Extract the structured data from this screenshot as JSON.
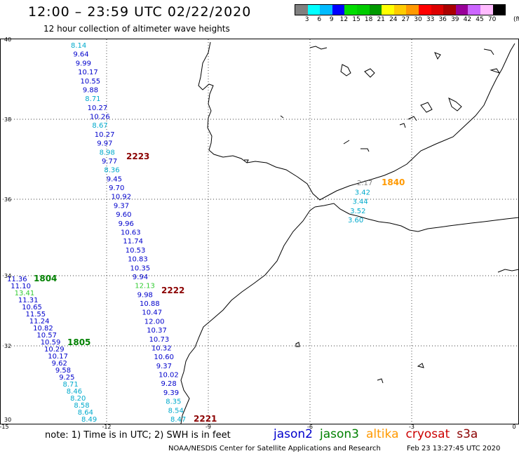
{
  "header": {
    "title": "12:00 – 23:59 UTC 02/22/2020",
    "subtitle": "12 hour collection of altimeter wave heights"
  },
  "legend": {
    "colors": [
      "#808080",
      "#00ffff",
      "#00bbff",
      "#0000ff",
      "#00dd00",
      "#00cc00",
      "#009900",
      "#ffff00",
      "#ffcc00",
      "#ff9900",
      "#ff0000",
      "#dd0000",
      "#aa0000",
      "#990099",
      "#cc66ff",
      "#ffbbff",
      "#000000"
    ],
    "labels": [
      "3",
      "6",
      "9",
      "12",
      "15",
      "18",
      "21",
      "24",
      "27",
      "30",
      "33",
      "36",
      "39",
      "42",
      "45",
      "70"
    ],
    "unit": "(ft)"
  },
  "axes": {
    "lon_ticks": [
      "-15",
      "-12",
      "-9",
      "-6",
      "-3",
      "0"
    ],
    "lat_ticks": [
      "40",
      "38",
      "36",
      "34",
      "32",
      "30"
    ]
  },
  "passes": [
    {
      "label": "2223",
      "color": "#8b0000"
    },
    {
      "label": "2222",
      "color": "#8b0000"
    },
    {
      "label": "2221",
      "color": "#8b0000"
    },
    {
      "label": "1804",
      "color": "#008000"
    },
    {
      "label": "1805",
      "color": "#008000"
    },
    {
      "label": "1840",
      "color": "#ff9900"
    }
  ],
  "track_a": [
    {
      "v": "8.14",
      "c": "#00aacc"
    },
    {
      "v": "9.64",
      "c": "#0000cc"
    },
    {
      "v": "9.99",
      "c": "#0000cc"
    },
    {
      "v": "10.17",
      "c": "#0000cc"
    },
    {
      "v": "10.55",
      "c": "#0000cc"
    },
    {
      "v": "9.88",
      "c": "#0000cc"
    },
    {
      "v": "8.71",
      "c": "#00aacc"
    },
    {
      "v": "10.27",
      "c": "#0000cc"
    },
    {
      "v": "10.26",
      "c": "#0000cc"
    },
    {
      "v": "8.67",
      "c": "#00aacc"
    },
    {
      "v": "10.27",
      "c": "#0000cc"
    },
    {
      "v": "9.97",
      "c": "#0000cc"
    },
    {
      "v": "8.98",
      "c": "#00aacc"
    },
    {
      "v": "9.77",
      "c": "#0000cc"
    },
    {
      "v": "8.36",
      "c": "#00aacc"
    },
    {
      "v": "9.45",
      "c": "#0000cc"
    },
    {
      "v": "9.70",
      "c": "#0000cc"
    },
    {
      "v": "10.92",
      "c": "#0000cc"
    },
    {
      "v": "9.37",
      "c": "#0000cc"
    },
    {
      "v": "9.60",
      "c": "#0000cc"
    },
    {
      "v": "9.96",
      "c": "#0000cc"
    },
    {
      "v": "10.63",
      "c": "#0000cc"
    },
    {
      "v": "11.74",
      "c": "#0000cc"
    },
    {
      "v": "10.53",
      "c": "#0000cc"
    },
    {
      "v": "10.83",
      "c": "#0000cc"
    },
    {
      "v": "10.35",
      "c": "#0000cc"
    },
    {
      "v": "9.94",
      "c": "#0000cc"
    },
    {
      "v": "12.13",
      "c": "#33cc33"
    },
    {
      "v": "9.98",
      "c": "#0000cc"
    },
    {
      "v": "10.88",
      "c": "#0000cc"
    },
    {
      "v": "10.47",
      "c": "#0000cc"
    },
    {
      "v": "12.00",
      "c": "#0000cc"
    },
    {
      "v": "10.37",
      "c": "#0000cc"
    },
    {
      "v": "10.73",
      "c": "#0000cc"
    },
    {
      "v": "10.32",
      "c": "#0000cc"
    },
    {
      "v": "10.60",
      "c": "#0000cc"
    },
    {
      "v": "9.37",
      "c": "#0000cc"
    },
    {
      "v": "10.02",
      "c": "#0000cc"
    },
    {
      "v": "9.28",
      "c": "#0000cc"
    },
    {
      "v": "9.39",
      "c": "#0000cc"
    },
    {
      "v": "8.35",
      "c": "#00aacc"
    },
    {
      "v": "8.54",
      "c": "#00aacc"
    },
    {
      "v": "8.47",
      "c": "#00aacc"
    }
  ],
  "track_b": [
    {
      "v": "11.36",
      "c": "#0000cc"
    },
    {
      "v": "11.10",
      "c": "#0000cc"
    },
    {
      "v": "13.41",
      "c": "#33cc33"
    },
    {
      "v": "11.31",
      "c": "#0000cc"
    },
    {
      "v": "10.65",
      "c": "#0000cc"
    },
    {
      "v": "11.55",
      "c": "#0000cc"
    },
    {
      "v": "11.24",
      "c": "#0000cc"
    },
    {
      "v": "10.82",
      "c": "#0000cc"
    },
    {
      "v": "10.57",
      "c": "#0000cc"
    },
    {
      "v": "10.59",
      "c": "#0000cc"
    },
    {
      "v": "10.29",
      "c": "#0000cc"
    },
    {
      "v": "10.17",
      "c": "#0000cc"
    },
    {
      "v": "9.62",
      "c": "#0000cc"
    },
    {
      "v": "9.58",
      "c": "#0000cc"
    },
    {
      "v": "9.25",
      "c": "#0000cc"
    },
    {
      "v": "8.71",
      "c": "#00aacc"
    },
    {
      "v": "8.46",
      "c": "#00aacc"
    },
    {
      "v": "8.20",
      "c": "#00aacc"
    },
    {
      "v": "8.58",
      "c": "#00aacc"
    },
    {
      "v": "8.64",
      "c": "#00aacc"
    },
    {
      "v": "8.49",
      "c": "#00aacc"
    }
  ],
  "track_c": [
    {
      "v": "2.17",
      "c": "#808080"
    },
    {
      "v": "3.42",
      "c": "#00aacc"
    },
    {
      "v": "3.44",
      "c": "#00aacc"
    },
    {
      "v": "3.52",
      "c": "#00aacc"
    },
    {
      "v": "3.60",
      "c": "#00aacc"
    }
  ],
  "footer": {
    "note": "note:  1) Time is in UTC;  2) SWH is in feet",
    "satellites": [
      {
        "name": "jason2",
        "color": "#0000cc"
      },
      {
        "name": "jason3",
        "color": "#008000"
      },
      {
        "name": "altika",
        "color": "#ff9900"
      },
      {
        "name": "cryosat",
        "color": "#cc0000"
      },
      {
        "name": "s3a",
        "color": "#8b0000"
      }
    ],
    "credit": "NOAA/NESDIS Center for Satellite Applications and Research",
    "timestamp": "Feb 23 13:27:45 UTC 2020"
  }
}
